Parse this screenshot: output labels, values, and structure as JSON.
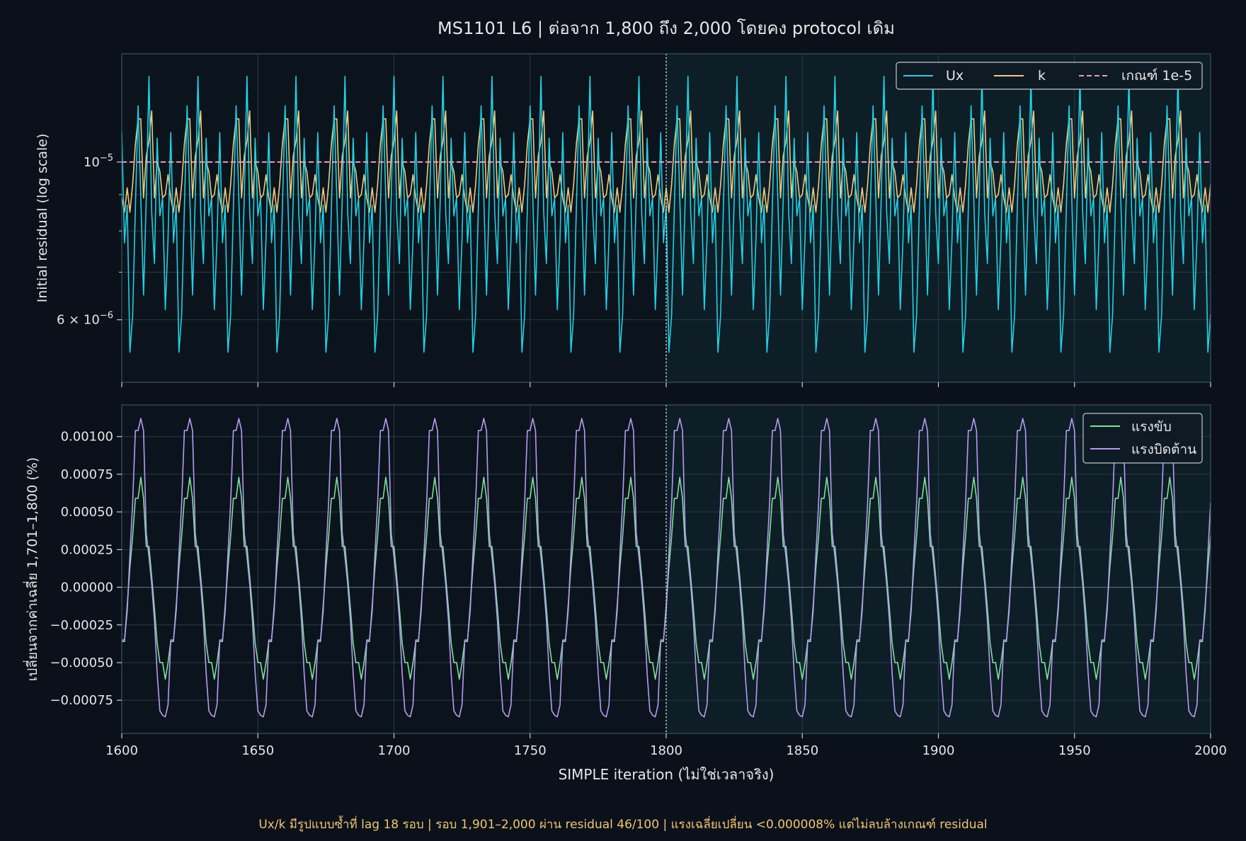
{
  "figure": {
    "title": "MS1101 L6 | ต่อจาก 1,800 ถึง 2,000 โดยคง protocol เดิม",
    "footnote": "Ux/k มีรูปแบบซ้ำที่ lag 18 รอบ | รอบ 1,901–2,000 ผ่าน residual 46/100 | แรงเฉลี่ยเปลี่ยน <0.000008% แต่ไม่ลบล้างเกณฑ์ residual",
    "background": "#0a111a",
    "plot_background": "#0b141d",
    "highlight_background": "#0d1e27",
    "text_color": "#e6e6e6",
    "footnote_color": "#f2c46e"
  },
  "chart_data": [
    {
      "type": "line",
      "name": "residual-panel",
      "ylabel": "Initial residual (log scale)",
      "yscale": "log",
      "ylim": [
        4.9e-06,
        1.42e-05
      ],
      "xlim": [
        1600,
        2000
      ],
      "y_ticks": [
        {
          "value": 1e-05,
          "label": "10",
          "sup": "−5"
        },
        {
          "value": 6e-06,
          "label": "6 × 10",
          "sup": "−6"
        }
      ],
      "minor_y_ticks": [
        7e-06,
        8e-06,
        9e-06
      ],
      "grid": true,
      "legend_position": "top-right",
      "continuation_start": 1800,
      "highlight_range": [
        1800,
        2000
      ],
      "period": 18,
      "series": [
        {
          "name": "Ux",
          "color": "#22d0e3",
          "cycle_x_offset": 1603,
          "cycle": [
            5.4e-06,
            6.1e-06,
            8.6e-06,
            1.2e-05,
            8.9e-06,
            6.5e-06,
            8.9e-06,
            1.32e-05,
            8.5e-06,
            7.2e-06,
            1.08e-05,
            8.4e-06,
            8.9e-06,
            6.2e-06,
            7.8e-06,
            1.1e-05,
            7.7e-06,
            8.7e-06
          ]
        },
        {
          "name": "k",
          "color": "#f5c97a",
          "cycle_x_offset": 1603,
          "cycle": [
            8.5e-06,
            9.3e-06,
            1.06e-05,
            1.15e-05,
            1.15e-05,
            8.9e-06,
            1.02e-05,
            1.07e-05,
            1.18e-05,
            8.9e-06,
            1e-05,
            9.7e-06,
            8.9e-06,
            9e-06,
            9.6e-06,
            8.9e-06,
            8.5e-06,
            9.2e-06
          ]
        }
      ],
      "threshold": {
        "name": "เกณฑ์ 1e-5",
        "value": 1e-05,
        "color": "#f49ab0"
      }
    },
    {
      "type": "line",
      "name": "force-panel",
      "ylabel": "เปลี่ยนจากค่าเฉลี่ย 1,701–1,800 (%)",
      "xlabel": "SIMPLE iteration (ไม่ใช่เวลาจริง)",
      "ylim": [
        -0.00097,
        0.00121
      ],
      "xlim": [
        1600,
        2000
      ],
      "x_ticks": [
        1600,
        1650,
        1700,
        1750,
        1800,
        1850,
        1900,
        1950,
        2000
      ],
      "x_tick_labels": [
        "1600",
        "1650",
        "1700",
        "1750",
        "1800",
        "1850",
        "1900",
        "1950",
        "2000"
      ],
      "y_ticks": [
        0.001,
        0.00075,
        0.0005,
        0.00025,
        0,
        -0.00025,
        -0.0005,
        -0.00075
      ],
      "y_tick_labels": [
        "0.00100",
        "0.00075",
        "0.00050",
        "0.00025",
        "0.00000",
        "−0.00025",
        "−0.00050",
        "−0.00075"
      ],
      "grid": true,
      "legend_position": "top-right",
      "continuation_start": 1800,
      "highlight_range": [
        1800,
        2000
      ],
      "period": 18,
      "series": [
        {
          "name": "แรงขับ",
          "color": "#7fe09a",
          "cycle_x_offset": 1603,
          "cycle": [
            0.00013,
            0.00034,
            0.00059,
            0.00059,
            0.00073,
            0.00059,
            0.00027,
            0.00027,
            7e-05,
            -0.00014,
            -0.00037,
            -0.0005,
            -0.0005,
            -0.00061,
            -0.0005,
            -0.00036,
            -0.00036,
            -0.00012
          ]
        },
        {
          "name": "แรงบิดต้าน",
          "color": "#b89af2",
          "cycle_x_offset": 1603,
          "cycle": [
            0.00022,
            0.00056,
            0.00104,
            0.00104,
            0.00112,
            0.00104,
            0.00036,
            0.0002,
            2e-05,
            -0.00022,
            -0.00057,
            -0.00082,
            -0.00085,
            -0.00086,
            -0.00078,
            -0.00035,
            -0.00035,
            -0.00016
          ]
        }
      ]
    }
  ]
}
